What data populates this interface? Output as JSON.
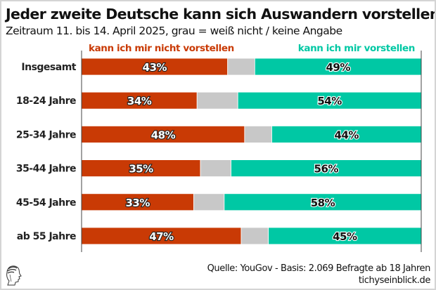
{
  "chart_data": {
    "type": "bar",
    "orientation": "horizontal-stacked",
    "title": "Jeder zweite Deutsche kann sich Auswandern vorstellen",
    "subtitle": "Zeitraum 11. bis 14. April 2025, grau = weiß nicht / keine Angabe",
    "categories": [
      "Insgesamt",
      "18-24 Jahre",
      "25-34 Jahre",
      "35-44 Jahre",
      "45-54 Jahre",
      "ab 55 Jahre"
    ],
    "series": [
      {
        "name": "kann ich mir nicht vorstellen",
        "color": "#C93A05",
        "values": [
          43,
          34,
          48,
          35,
          33,
          47
        ]
      },
      {
        "name": "weiß nicht / keine Angabe",
        "color": "#C8C8C8",
        "values": [
          8,
          12,
          8,
          9,
          9,
          8
        ]
      },
      {
        "name": "kann ich mir vorstellen",
        "color": "#00C8A4",
        "values": [
          49,
          54,
          44,
          56,
          58,
          45
        ]
      }
    ],
    "data_labels": {
      "no": [
        "43%",
        "34%",
        "48%",
        "35%",
        "33%",
        "47%"
      ],
      "yes": [
        "49%",
        "54%",
        "44%",
        "56%",
        "58%",
        "45%"
      ]
    },
    "xlim": [
      0,
      100
    ],
    "xlabel": "",
    "ylabel": "",
    "grid": false,
    "legend": {
      "left_label": "kann ich mir nicht vorstellen",
      "right_label": "kann ich mir vorstellen",
      "placement": "top"
    }
  },
  "footer": {
    "source": "Quelle: YouGov - Basis: 2.069 Befragte ab 18 Jahren",
    "site": "tichyseinblick.de",
    "logo_icon": "classical-head-icon"
  }
}
